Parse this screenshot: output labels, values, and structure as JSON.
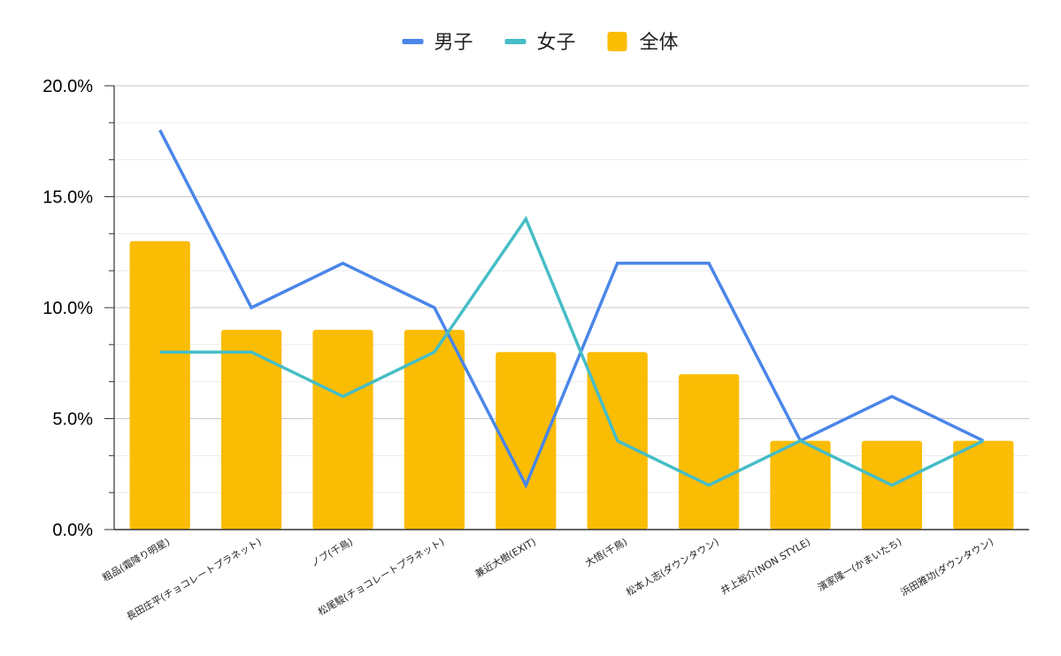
{
  "chart_data": {
    "type": "bar",
    "categories": [
      "粗品(霜降り明星)",
      "長田庄平(チョコレートプラネット)",
      "ノブ(千鳥)",
      "松尾駿(チョコレートプラネット)",
      "兼近大樹(EXIT)",
      "大悟(千鳥)",
      "松本人志(ダウンタウン)",
      "井上裕介(NON STYLE)",
      "濱家隆一(かまいたち)",
      "浜田雅功(ダウンタウン)"
    ],
    "series": [
      {
        "name": "男子",
        "type": "line",
        "color": "#4a86e8",
        "values": [
          18,
          10,
          12,
          10,
          2,
          12,
          12,
          4,
          6,
          4
        ]
      },
      {
        "name": "女子",
        "type": "line",
        "color": "#46bdc6",
        "values": [
          8,
          8,
          6,
          8,
          14,
          4,
          2,
          4,
          2,
          4
        ]
      },
      {
        "name": "全体",
        "type": "bar",
        "color": "#fbbc04",
        "values": [
          13,
          9,
          9,
          9,
          8,
          8,
          7,
          4,
          4,
          4
        ]
      }
    ],
    "y_tick_labels": [
      "0.0%",
      "5.0%",
      "10.0%",
      "15.0%",
      "20.0%"
    ],
    "ylim": [
      0,
      20
    ],
    "y_major_step": 5,
    "y_minor_step": 1.6667,
    "grid": true,
    "legend_position": "top-center"
  }
}
